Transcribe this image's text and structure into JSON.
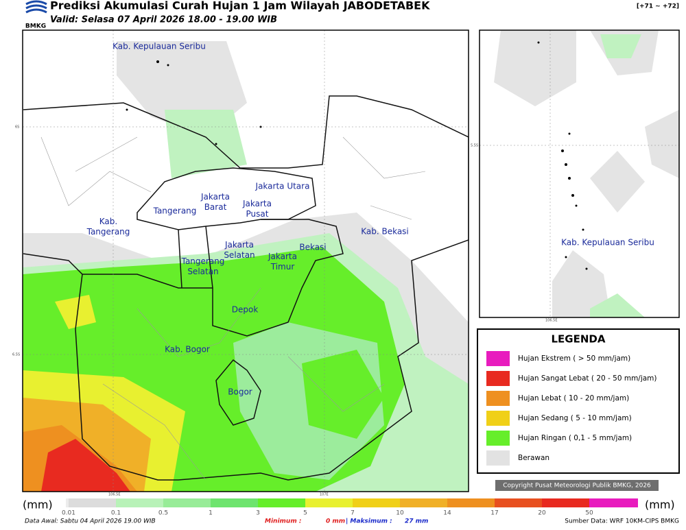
{
  "header": {
    "logo": "BMKG",
    "title": "Prediksi Akumulasi Curah Hujan 1 Jam Wilayah JABODETABEK",
    "subtitle": "Valid: Selasa 07 April 2026 18.00 - 19.00 WIB",
    "range": "[+71 ~ +72]"
  },
  "main_map": {
    "regions": [
      {
        "lines": [
          "Kab. Kepulauan Seribu"
        ]
      },
      {
        "lines": [
          "Jakarta Utara"
        ]
      },
      {
        "lines": [
          "Jakarta",
          "Barat"
        ]
      },
      {
        "lines": [
          "Jakarta",
          "Pusat"
        ]
      },
      {
        "lines": [
          "Tangerang"
        ]
      },
      {
        "lines": [
          "Kab.",
          "Tangerang"
        ]
      },
      {
        "lines": [
          "Kab. Bekasi"
        ]
      },
      {
        "lines": [
          "Jakarta",
          "Selatan"
        ]
      },
      {
        "lines": [
          "Jakarta",
          "Timur"
        ]
      },
      {
        "lines": [
          "Bekasi"
        ]
      },
      {
        "lines": [
          "Tangerang",
          "Selatan"
        ]
      },
      {
        "lines": [
          "Depok"
        ]
      },
      {
        "lines": [
          "Kab. Bogor"
        ]
      },
      {
        "lines": [
          "Bogor"
        ]
      }
    ],
    "grid_labels": [
      "6S",
      "6.5S",
      "106.5E",
      "107E"
    ]
  },
  "inset_map": {
    "region": "Kab. Kepulauan Seribu",
    "grid_labels": [
      "5.5S",
      "106.5E"
    ]
  },
  "legend": {
    "title": "LEGENDA",
    "entries": [
      {
        "label": "Hujan Ekstrem ( > 50 mm/jam)",
        "color": "#e81cbe"
      },
      {
        "label": "Hujan Sangat Lebat ( 20 - 50 mm/jam)",
        "color": "#e82a20"
      },
      {
        "label": "Hujan Lebat ( 10 - 20 mm/jam)",
        "color": "#ee9020"
      },
      {
        "label": "Hujan Sedang ( 5 - 10 mm/jam)",
        "color": "#f0d018"
      },
      {
        "label": "Hujan Ringan ( 0,1 - 5 mm/jam)",
        "color": "#66ee2a"
      },
      {
        "label": "Berawan",
        "color": "#e2e2e2"
      }
    ]
  },
  "copyright": "Copyright Pusat Meteorologi Publik BMKG, 2026",
  "scale": {
    "unit": "(mm)",
    "ticks": [
      "0.01",
      "0.1",
      "0.5",
      "1",
      "3",
      "5",
      "7",
      "10",
      "14",
      "17",
      "20",
      "50"
    ],
    "colors": [
      "#ececec",
      "#dcdcdc",
      "#b8f2b8",
      "#98ec98",
      "#6ee46e",
      "#66ee2a",
      "#e8f030",
      "#f0d018",
      "#f0b028",
      "#ee9020",
      "#e85020",
      "#e82a20",
      "#e81cbe"
    ]
  },
  "footer": {
    "start": "Data Awal: Sabtu 04 April 2026 19.00 WIB",
    "min_label": "Minimum :",
    "min_value": "0 mm",
    "max_label": "| Maksimum :",
    "max_value": "27 mm",
    "source": "Sumber Data: WRF 10KM-CIPS BMKG"
  }
}
